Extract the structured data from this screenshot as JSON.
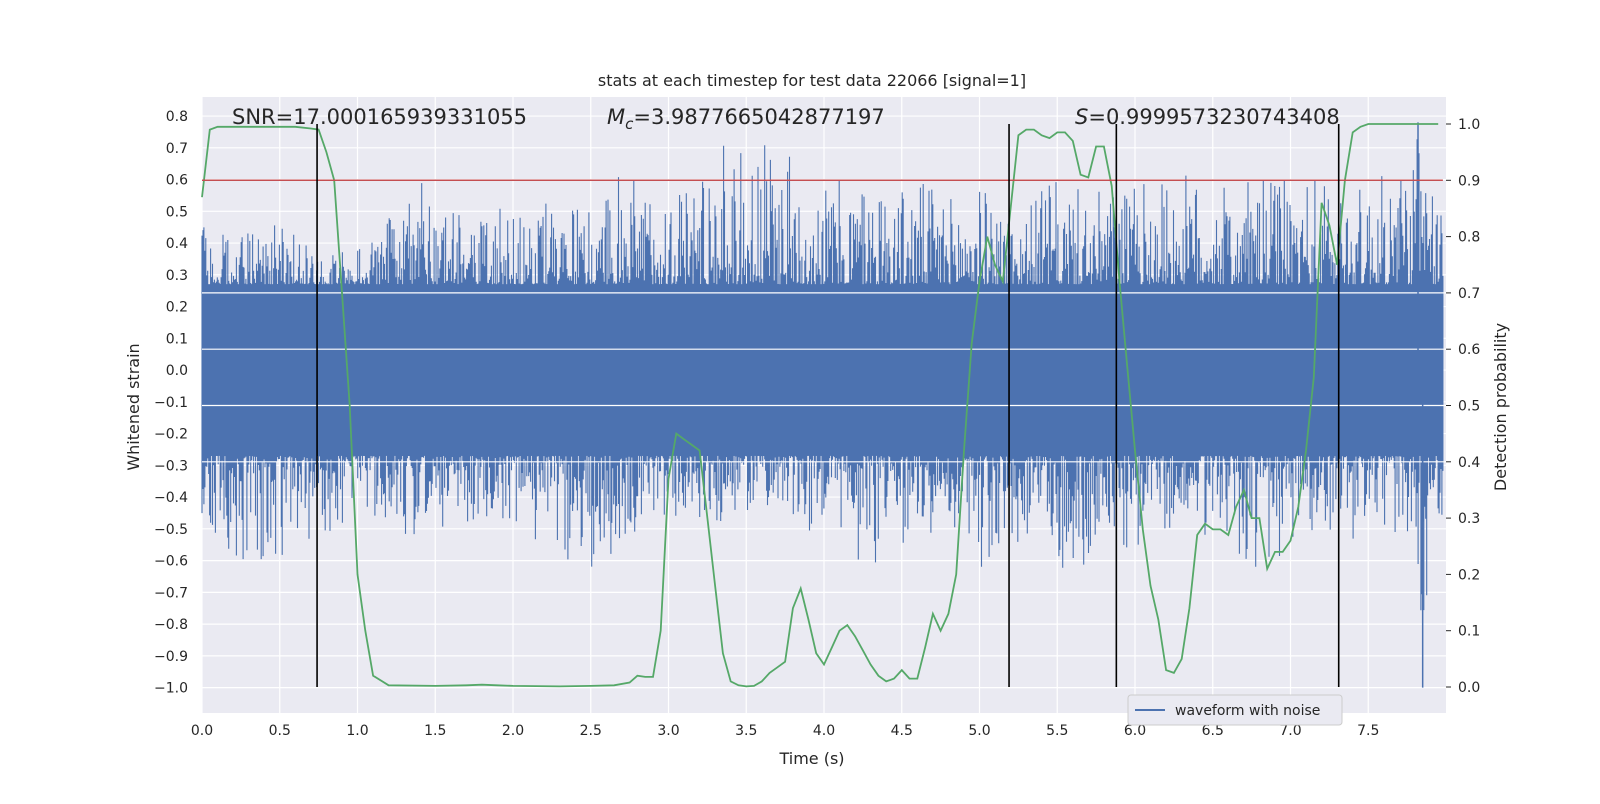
{
  "chart_data": {
    "type": "line",
    "title": "stats at each timestep for test data 22066 [signal=1]",
    "xlabel": "Time (s)",
    "ylabel_left": "Whitened strain",
    "ylabel_right": "Detection probability",
    "xlim": [
      0,
      8
    ],
    "ylim_left": [
      -1.08,
      0.86
    ],
    "ylim_right": [
      0,
      1
    ],
    "x_ticks": [
      0.0,
      0.5,
      1.0,
      1.5,
      2.0,
      2.5,
      3.0,
      3.5,
      4.0,
      4.5,
      5.0,
      5.5,
      6.0,
      6.5,
      7.0,
      7.5
    ],
    "x_tick_labels": [
      "0.0",
      "0.5",
      "1.0",
      "1.5",
      "2.0",
      "2.5",
      "3.0",
      "3.5",
      "4.0",
      "4.5",
      "5.0",
      "5.5",
      "6.0",
      "6.5",
      "7.0",
      "7.5"
    ],
    "y_left_ticks": [
      0.8,
      0.7,
      0.6,
      0.5,
      0.4,
      0.3,
      0.2,
      0.1,
      0.0,
      -0.1,
      -0.2,
      -0.3,
      -0.4,
      -0.5,
      -0.6,
      -0.7,
      -0.8,
      -0.9,
      -1.0
    ],
    "y_left_tick_labels": [
      "0.8",
      "0.7",
      "0.6",
      "0.5",
      "0.4",
      "0.3",
      "0.2",
      "0.1",
      "0.0",
      "−0.1",
      "−0.2",
      "−0.3",
      "−0.4",
      "−0.5",
      "−0.6",
      "−0.7",
      "−0.8",
      "−0.9",
      "−1.0"
    ],
    "y_right_ticks": [
      1.0,
      0.9,
      0.8,
      0.7,
      0.6,
      0.5,
      0.4,
      0.3,
      0.2,
      0.1,
      0.0
    ],
    "y_right_tick_labels": [
      "1.0",
      "0.9",
      "0.8",
      "0.7",
      "0.6",
      "0.5",
      "0.4",
      "0.3",
      "0.2",
      "0.1",
      "0.0"
    ],
    "annotations": {
      "snr": "SNR=17.000165939331055",
      "mc_prefix": "M",
      "mc_sub": "c",
      "mc_value": "=3.9877665042877197",
      "s_prefix": "S",
      "s_value": "=0.9999573230743408"
    },
    "legend": {
      "label": "waveform with noise",
      "placement": "lower-right"
    },
    "threshold": {
      "axis": "right",
      "value": 0.9,
      "color": "#c44e52"
    },
    "vertical_lines": [
      0.74,
      5.19,
      5.88,
      7.31
    ],
    "colors": {
      "waveform": "#4c72b0",
      "probability": "#55a868",
      "threshold": "#c44e52",
      "vlines": "#000000",
      "plot_bg": "#eaeaf2"
    },
    "waveform": {
      "name": "waveform with noise",
      "envelope_note_values": "sampled noise envelope",
      "core_amplitude": 0.27,
      "peaks_top": [
        [
          0.05,
          0.45
        ],
        [
          0.2,
          0.42
        ],
        [
          0.35,
          0.48
        ],
        [
          0.5,
          0.46
        ],
        [
          0.75,
          0.37
        ],
        [
          1.0,
          0.38
        ],
        [
          1.15,
          0.45
        ],
        [
          1.45,
          0.64
        ],
        [
          1.7,
          0.46
        ],
        [
          1.85,
          0.48
        ],
        [
          2.0,
          0.55
        ],
        [
          2.15,
          0.58
        ],
        [
          2.3,
          0.48
        ],
        [
          2.55,
          0.55
        ],
        [
          2.7,
          0.62
        ],
        [
          2.85,
          0.59
        ],
        [
          3.05,
          0.58
        ],
        [
          3.2,
          0.68
        ],
        [
          3.35,
          0.71
        ],
        [
          3.55,
          0.7
        ],
        [
          3.7,
          0.72
        ],
        [
          4.0,
          0.6
        ],
        [
          4.3,
          0.6
        ],
        [
          4.5,
          0.58
        ],
        [
          4.65,
          0.6
        ],
        [
          4.85,
          0.54
        ],
        [
          5.0,
          0.58
        ],
        [
          5.25,
          0.48
        ],
        [
          5.45,
          0.6
        ],
        [
          5.7,
          0.56
        ],
        [
          6.05,
          0.59
        ],
        [
          6.3,
          0.62
        ],
        [
          6.55,
          0.58
        ],
        [
          6.85,
          0.6
        ],
        [
          7.15,
          0.61
        ],
        [
          7.45,
          0.58
        ],
        [
          7.65,
          0.63
        ],
        [
          7.75,
          0.7
        ],
        [
          7.82,
          0.78
        ],
        [
          7.9,
          0.55
        ]
      ],
      "peaks_bottom": [
        [
          0.05,
          -0.48
        ],
        [
          0.2,
          -0.62
        ],
        [
          0.5,
          -0.6
        ],
        [
          0.8,
          -0.53
        ],
        [
          1.1,
          -0.46
        ],
        [
          1.3,
          -0.53
        ],
        [
          1.6,
          -0.5
        ],
        [
          1.85,
          -0.47
        ],
        [
          2.05,
          -0.5
        ],
        [
          2.3,
          -0.6
        ],
        [
          2.45,
          -0.66
        ],
        [
          2.7,
          -0.55
        ],
        [
          2.9,
          -0.48
        ],
        [
          3.1,
          -0.46
        ],
        [
          3.35,
          -0.48
        ],
        [
          3.6,
          -0.44
        ],
        [
          3.85,
          -0.53
        ],
        [
          4.0,
          -0.47
        ],
        [
          4.3,
          -0.69
        ],
        [
          4.6,
          -0.52
        ],
        [
          4.85,
          -0.5
        ],
        [
          5.0,
          -0.66
        ],
        [
          5.35,
          -0.5
        ],
        [
          5.6,
          -0.69
        ],
        [
          5.8,
          -0.5
        ],
        [
          6.05,
          -0.6
        ],
        [
          6.3,
          -0.53
        ],
        [
          6.55,
          -0.52
        ],
        [
          6.9,
          -0.7
        ],
        [
          7.1,
          -0.5
        ],
        [
          7.4,
          -0.54
        ],
        [
          7.6,
          -0.53
        ],
        [
          7.78,
          -0.55
        ],
        [
          7.85,
          -1.0
        ],
        [
          7.9,
          -0.5
        ]
      ]
    },
    "probability": {
      "name": "",
      "x": [
        0.0,
        0.05,
        0.1,
        0.2,
        0.3,
        0.4,
        0.5,
        0.6,
        0.7,
        0.75,
        0.8,
        0.85,
        0.9,
        0.95,
        1.0,
        1.05,
        1.1,
        1.2,
        1.5,
        1.7,
        1.8,
        1.9,
        2.0,
        2.3,
        2.5,
        2.65,
        2.75,
        2.8,
        2.85,
        2.9,
        2.95,
        3.0,
        3.05,
        3.1,
        3.15,
        3.2,
        3.25,
        3.3,
        3.35,
        3.4,
        3.45,
        3.5,
        3.55,
        3.6,
        3.65,
        3.7,
        3.75,
        3.8,
        3.85,
        3.9,
        3.95,
        4.0,
        4.05,
        4.1,
        4.15,
        4.2,
        4.25,
        4.3,
        4.35,
        4.4,
        4.45,
        4.5,
        4.55,
        4.6,
        4.65,
        4.7,
        4.75,
        4.8,
        4.85,
        4.9,
        4.95,
        5.0,
        5.05,
        5.1,
        5.15,
        5.2,
        5.25,
        5.3,
        5.35,
        5.4,
        5.45,
        5.5,
        5.55,
        5.6,
        5.65,
        5.7,
        5.75,
        5.8,
        5.85,
        5.9,
        5.95,
        6.0,
        6.05,
        6.1,
        6.15,
        6.2,
        6.25,
        6.3,
        6.35,
        6.4,
        6.45,
        6.5,
        6.55,
        6.6,
        6.65,
        6.7,
        6.75,
        6.8,
        6.85,
        6.9,
        6.95,
        7.0,
        7.05,
        7.1,
        7.15,
        7.2,
        7.25,
        7.3,
        7.35,
        7.4,
        7.45,
        7.5,
        7.8,
        7.95
      ],
      "values": [
        0.87,
        0.99,
        0.995,
        0.995,
        0.995,
        0.995,
        0.995,
        0.995,
        0.992,
        0.99,
        0.95,
        0.9,
        0.7,
        0.5,
        0.2,
        0.1,
        0.02,
        0.003,
        0.002,
        0.003,
        0.004,
        0.003,
        0.002,
        0.001,
        0.002,
        0.003,
        0.008,
        0.02,
        0.018,
        0.018,
        0.1,
        0.37,
        0.45,
        0.44,
        0.43,
        0.42,
        0.3,
        0.18,
        0.06,
        0.01,
        0.003,
        0.001,
        0.002,
        0.01,
        0.025,
        0.035,
        0.045,
        0.14,
        0.175,
        0.12,
        0.06,
        0.04,
        0.07,
        0.1,
        0.11,
        0.09,
        0.065,
        0.04,
        0.02,
        0.01,
        0.015,
        0.03,
        0.015,
        0.015,
        0.07,
        0.13,
        0.1,
        0.13,
        0.2,
        0.42,
        0.61,
        0.72,
        0.8,
        0.75,
        0.72,
        0.85,
        0.98,
        0.99,
        0.99,
        0.98,
        0.975,
        0.985,
        0.985,
        0.97,
        0.91,
        0.905,
        0.96,
        0.96,
        0.89,
        0.72,
        0.57,
        0.42,
        0.28,
        0.18,
        0.12,
        0.03,
        0.025,
        0.05,
        0.14,
        0.27,
        0.29,
        0.28,
        0.28,
        0.27,
        0.32,
        0.35,
        0.3,
        0.3,
        0.21,
        0.24,
        0.24,
        0.26,
        0.32,
        0.42,
        0.55,
        0.86,
        0.82,
        0.75,
        0.9,
        0.985,
        0.995,
        1.0,
        1.0,
        1.0
      ]
    }
  }
}
